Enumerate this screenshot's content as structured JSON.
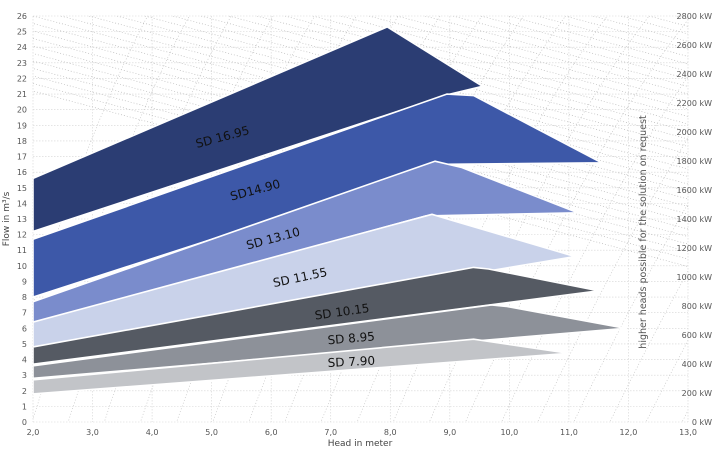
{
  "chart_data": {
    "type": "area",
    "xlabel": "Head in meter",
    "ylabel": "Flow in m³/s",
    "side_note": "higher heads possible for the solution on request",
    "xlim": [
      2.0,
      13.0
    ],
    "ylim": [
      0,
      26
    ],
    "x_ticks": [
      "2,0",
      "3,0",
      "4,0",
      "5,0",
      "6,0",
      "7,0",
      "8,0",
      "9,0",
      "10,0",
      "11,0",
      "12,0",
      "13,0"
    ],
    "y_ticks": [
      "0",
      "1",
      "2",
      "3",
      "4",
      "5",
      "6",
      "7",
      "8",
      "9",
      "10",
      "11",
      "12",
      "13",
      "14",
      "15",
      "16",
      "17",
      "18",
      "19",
      "20",
      "21",
      "22",
      "23",
      "24",
      "25",
      "26"
    ],
    "power_ticks": [
      "0 kW",
      "200 kW",
      "400 kW",
      "600 kW",
      "800 kW",
      "1000 kW",
      "1200 kW",
      "1400 kW",
      "1600 kW",
      "1800 kW",
      "2000 kW",
      "2200 kW",
      "2400 kW",
      "2600 kW",
      "2800 kW"
    ],
    "power_range_kw": [
      0,
      2800
    ],
    "iso_power_lines": {
      "style": "dotted",
      "color": "#bbbbbb",
      "slope_deg": 15
    },
    "series": [
      {
        "name": "SD 16.95",
        "color": "#2b3d73",
        "points": [
          [
            2.0,
            15.6
          ],
          [
            7.95,
            25.3
          ],
          [
            9.55,
            21.5
          ],
          [
            9.0,
            21.0
          ],
          [
            2.0,
            12.2
          ]
        ]
      },
      {
        "name": "SD14.90",
        "color": "#3d58a8",
        "points": [
          [
            2.0,
            11.7
          ],
          [
            8.95,
            21.0
          ],
          [
            9.4,
            20.9
          ],
          [
            11.55,
            16.6
          ],
          [
            8.9,
            16.5
          ],
          [
            2.0,
            8.0
          ]
        ]
      },
      {
        "name": "SD 13.10",
        "color": "#7a8ccc",
        "points": [
          [
            2.0,
            7.7
          ],
          [
            8.75,
            16.7
          ],
          [
            9.2,
            16.3
          ],
          [
            11.15,
            13.4
          ],
          [
            8.6,
            13.2
          ],
          [
            2.0,
            6.3
          ]
        ]
      },
      {
        "name": "SD 11.55",
        "color": "#c9d2ea",
        "points": [
          [
            2.0,
            6.4
          ],
          [
            8.7,
            13.3
          ],
          [
            9.05,
            12.9
          ],
          [
            11.1,
            10.6
          ],
          [
            2.0,
            4.8
          ]
        ]
      },
      {
        "name": "SD 10.15",
        "color": "#555a63",
        "points": [
          [
            2.0,
            4.8
          ],
          [
            9.4,
            9.9
          ],
          [
            9.65,
            9.8
          ],
          [
            11.5,
            8.4
          ],
          [
            2.0,
            3.7
          ]
        ]
      },
      {
        "name": "SD 8.95",
        "color": "#8d9199",
        "points": [
          [
            2.0,
            3.6
          ],
          [
            9.7,
            7.5
          ],
          [
            9.95,
            7.4
          ],
          [
            11.95,
            6.0
          ],
          [
            2.0,
            2.8
          ]
        ]
      },
      {
        "name": "SD 7.90",
        "color": "#c2c4c8",
        "points": [
          [
            2.0,
            2.7
          ],
          [
            9.4,
            5.3
          ],
          [
            11.0,
            4.4
          ],
          [
            2.0,
            1.8
          ]
        ]
      }
    ],
    "labels": [
      {
        "series": "SD 16.95",
        "x": 5.2,
        "y": 18.0,
        "rotate": -15
      },
      {
        "series": "SD14.90",
        "x": 5.75,
        "y": 14.6,
        "rotate": -15
      },
      {
        "series": "SD 13.10",
        "x": 6.05,
        "y": 11.5,
        "rotate": -15
      },
      {
        "series": "SD 11.55",
        "x": 6.5,
        "y": 9.0,
        "rotate": -12
      },
      {
        "series": "SD 10.15",
        "x": 7.2,
        "y": 6.8,
        "rotate": -8
      },
      {
        "series": "SD 8.95",
        "x": 7.35,
        "y": 5.1,
        "rotate": -5
      },
      {
        "series": "SD 7.90",
        "x": 7.35,
        "y": 3.6,
        "rotate": -3
      }
    ]
  }
}
